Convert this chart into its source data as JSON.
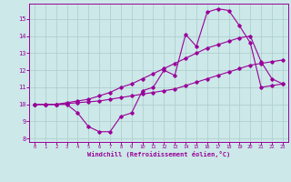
{
  "xlabel": "Windchill (Refroidissement éolien,°C)",
  "bg_color": "#cce8e8",
  "line_color": "#990099",
  "grid_color": "#aacccc",
  "xlim": [
    -0.5,
    23.5
  ],
  "ylim": [
    7.8,
    15.9
  ],
  "yticks": [
    8,
    9,
    10,
    11,
    12,
    13,
    14,
    15
  ],
  "xticks": [
    0,
    1,
    2,
    3,
    4,
    5,
    6,
    7,
    8,
    9,
    10,
    11,
    12,
    13,
    14,
    15,
    16,
    17,
    18,
    19,
    20,
    21,
    22,
    23
  ],
  "line1_x": [
    0,
    1,
    2,
    3,
    4,
    5,
    6,
    7,
    8,
    9,
    10,
    11,
    12,
    13,
    14,
    15,
    16,
    17,
    18,
    19,
    20,
    21,
    22,
    23
  ],
  "line1_y": [
    10,
    10,
    10,
    10,
    9.5,
    8.7,
    8.4,
    8.4,
    9.3,
    9.5,
    10.8,
    11.0,
    12.0,
    11.7,
    14.1,
    13.4,
    15.4,
    15.6,
    15.5,
    14.6,
    13.6,
    11.0,
    11.1,
    11.2
  ],
  "line2_x": [
    0,
    1,
    2,
    3,
    4,
    5,
    6,
    7,
    8,
    9,
    10,
    11,
    12,
    13,
    14,
    15,
    16,
    17,
    18,
    19,
    20,
    21,
    22,
    23
  ],
  "line2_y": [
    10.0,
    10.0,
    10.0,
    10.05,
    10.1,
    10.15,
    10.2,
    10.3,
    10.4,
    10.5,
    10.6,
    10.7,
    10.8,
    10.9,
    11.1,
    11.3,
    11.5,
    11.7,
    11.9,
    12.1,
    12.3,
    12.4,
    12.5,
    12.6
  ],
  "line3_x": [
    0,
    1,
    2,
    3,
    4,
    5,
    6,
    7,
    8,
    9,
    10,
    11,
    12,
    13,
    14,
    15,
    16,
    17,
    18,
    19,
    20,
    21,
    22,
    23
  ],
  "line3_y": [
    10.0,
    10.0,
    10.0,
    10.1,
    10.2,
    10.3,
    10.5,
    10.7,
    11.0,
    11.2,
    11.5,
    11.8,
    12.1,
    12.4,
    12.7,
    13.0,
    13.3,
    13.5,
    13.7,
    13.9,
    14.0,
    12.5,
    11.5,
    11.2
  ]
}
